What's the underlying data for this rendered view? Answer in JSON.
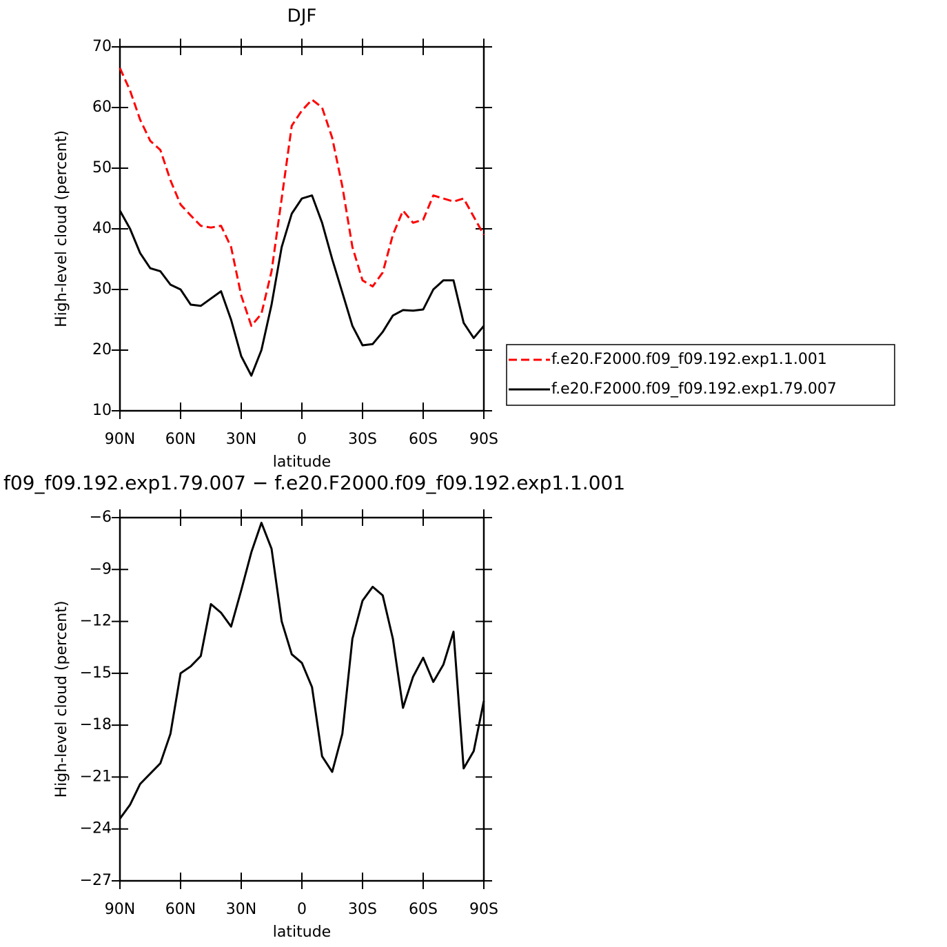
{
  "chart_data": [
    {
      "type": "line",
      "title": "DJF",
      "xlabel": "latitude",
      "ylabel": "High-level cloud (percent)",
      "x": [
        90,
        85,
        80,
        75,
        70,
        65,
        60,
        55,
        50,
        45,
        40,
        35,
        30,
        25,
        20,
        15,
        10,
        5,
        0,
        -5,
        -10,
        -15,
        -20,
        -25,
        -30,
        -35,
        -40,
        -45,
        -50,
        -55,
        -60,
        -65,
        -70,
        -75,
        -80,
        -85,
        -90
      ],
      "xlim": [
        90,
        -90
      ],
      "xticks": [
        {
          "value": 90,
          "label": "90N"
        },
        {
          "value": 60,
          "label": "60N"
        },
        {
          "value": 30,
          "label": "30N"
        },
        0,
        {
          "value": -30,
          "label": "30S"
        },
        {
          "value": -60,
          "label": "60S"
        },
        {
          "value": -90,
          "label": "90S"
        }
      ],
      "ylim": [
        10,
        70
      ],
      "yticks": [
        10,
        20,
        30,
        40,
        50,
        60,
        70
      ],
      "legend": "right",
      "series": [
        {
          "name": "f.e20.F2000.f09_f09.192.exp1.1.001",
          "color": "#ff0000",
          "linestyle": "dashed",
          "values": [
            66.5,
            62.8,
            58,
            54.5,
            53,
            48,
            44,
            42.2,
            40.5,
            40.2,
            40.5,
            37,
            29,
            24,
            26,
            33,
            45,
            57,
            59.5,
            61.3,
            60,
            55,
            47,
            37,
            31.5,
            30.5,
            32.8,
            39,
            43,
            41,
            41.5,
            45.5,
            45,
            44.5,
            45,
            42,
            39
          ]
        },
        {
          "name": "f.e20.F2000.f09_f09.192.exp1.79.007",
          "color": "#000000",
          "linestyle": "solid",
          "values": [
            43,
            40,
            36,
            33.5,
            33,
            30.8,
            30,
            27.5,
            27.3,
            28.5,
            29.7,
            25,
            19,
            15.8,
            20,
            27.5,
            37,
            42.5,
            45,
            45.5,
            41,
            35,
            29.5,
            24,
            20.8,
            21,
            23,
            25.7,
            26.6,
            26.5,
            26.7,
            30,
            31.5,
            31.5,
            24.5,
            22,
            24
          ]
        }
      ]
    },
    {
      "type": "line",
      "title": "f09_f09.192.exp1.79.007 − f.e20.F2000.f09_f09.192.exp1.1.001",
      "xlabel": "latitude",
      "ylabel": "High-level cloud (percent)",
      "x": [
        90,
        85,
        80,
        75,
        70,
        65,
        60,
        55,
        50,
        45,
        40,
        35,
        30,
        25,
        20,
        15,
        10,
        5,
        0,
        -5,
        -10,
        -15,
        -20,
        -25,
        -30,
        -35,
        -40,
        -45,
        -50,
        -55,
        -60,
        -65,
        -70,
        -75,
        -80,
        -85,
        -90
      ],
      "xlim": [
        90,
        -90
      ],
      "xticks": [
        {
          "value": 90,
          "label": "90N"
        },
        {
          "value": 60,
          "label": "60N"
        },
        {
          "value": 30,
          "label": "30N"
        },
        0,
        {
          "value": -30,
          "label": "30S"
        },
        {
          "value": -60,
          "label": "60S"
        },
        {
          "value": -90,
          "label": "90S"
        }
      ],
      "ylim": [
        -27,
        -6
      ],
      "yticks": [
        {
          "value": -27,
          "label": "−27"
        },
        {
          "value": -24,
          "label": "−24"
        },
        {
          "value": -21,
          "label": "−21"
        },
        {
          "value": -18,
          "label": "−18"
        },
        {
          "value": -15,
          "label": "−15"
        },
        {
          "value": -12,
          "label": "−12"
        },
        {
          "value": -9,
          "label": "−9"
        },
        {
          "value": -6,
          "label": "−6"
        }
      ],
      "color": "#000000",
      "values": [
        -23.4,
        -22.6,
        -21.4,
        -20.8,
        -20.2,
        -18.5,
        -15,
        -14.6,
        -14,
        -11,
        -11.5,
        -12.3,
        -10.2,
        -8,
        -6.3,
        -7.8,
        -12,
        -13.9,
        -14.4,
        -15.8,
        -19.8,
        -20.7,
        -18.5,
        -13,
        -10.8,
        -10,
        -10.5,
        -13,
        -17,
        -15.2,
        -14.1,
        -15.5,
        -14.5,
        -12.6,
        -20.5,
        -19.5,
        -16.6
      ]
    }
  ]
}
